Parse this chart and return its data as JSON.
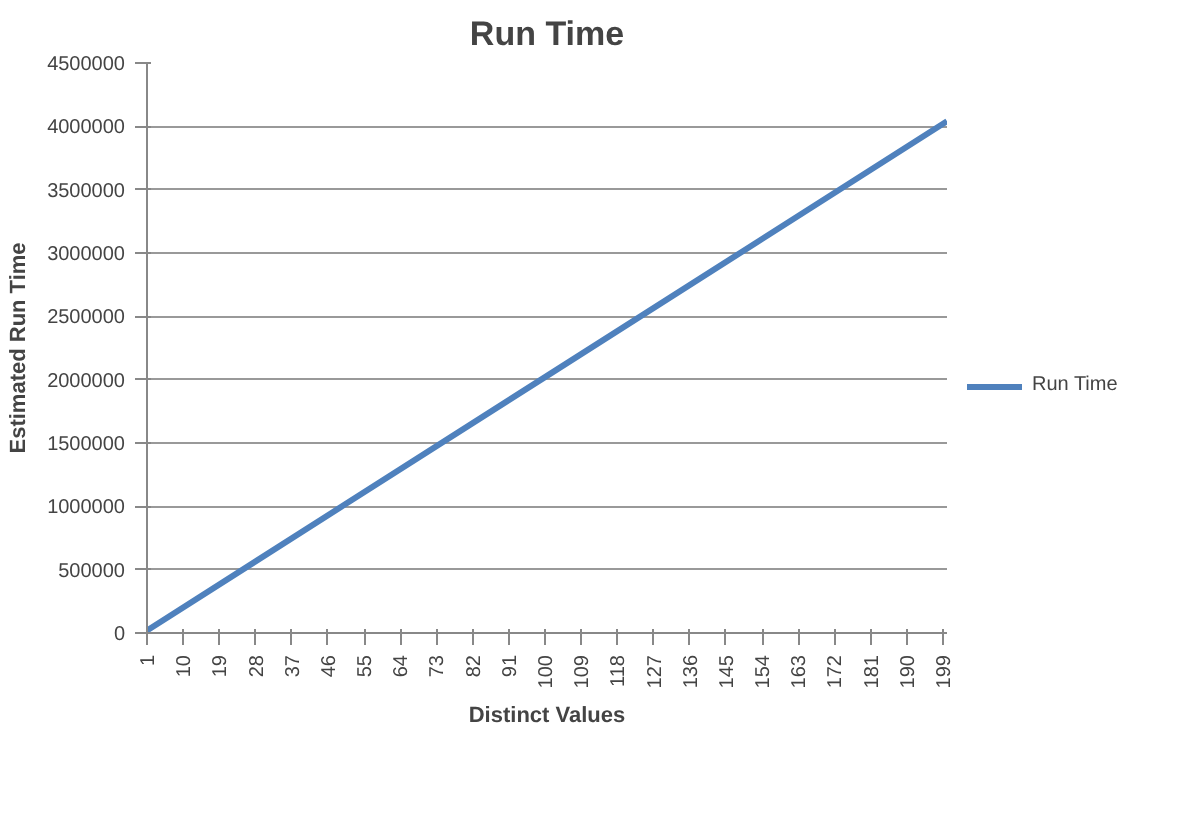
{
  "chart_data": {
    "type": "line",
    "title": "Run Time",
    "xlabel": "Distinct Values",
    "ylabel": "Estimated Run Time",
    "x": [
      1,
      50,
      100,
      150,
      200
    ],
    "series": [
      {
        "name": "Run Time",
        "color": "#4f81bd",
        "values": [
          20000,
          1010000,
          2020000,
          3030000,
          4040000
        ]
      }
    ],
    "xlim": [
      1,
      200
    ],
    "xticks": [
      1,
      10,
      19,
      28,
      37,
      46,
      55,
      64,
      73,
      82,
      91,
      100,
      109,
      118,
      127,
      136,
      145,
      154,
      163,
      172,
      181,
      190,
      199
    ],
    "ylim": [
      0,
      4500000
    ],
    "yticks": [
      0,
      500000,
      1000000,
      1500000,
      2000000,
      2500000,
      3000000,
      3500000,
      4000000,
      4500000
    ],
    "grid": "y",
    "legend": "right",
    "marker": "none",
    "line_style": "solid"
  }
}
